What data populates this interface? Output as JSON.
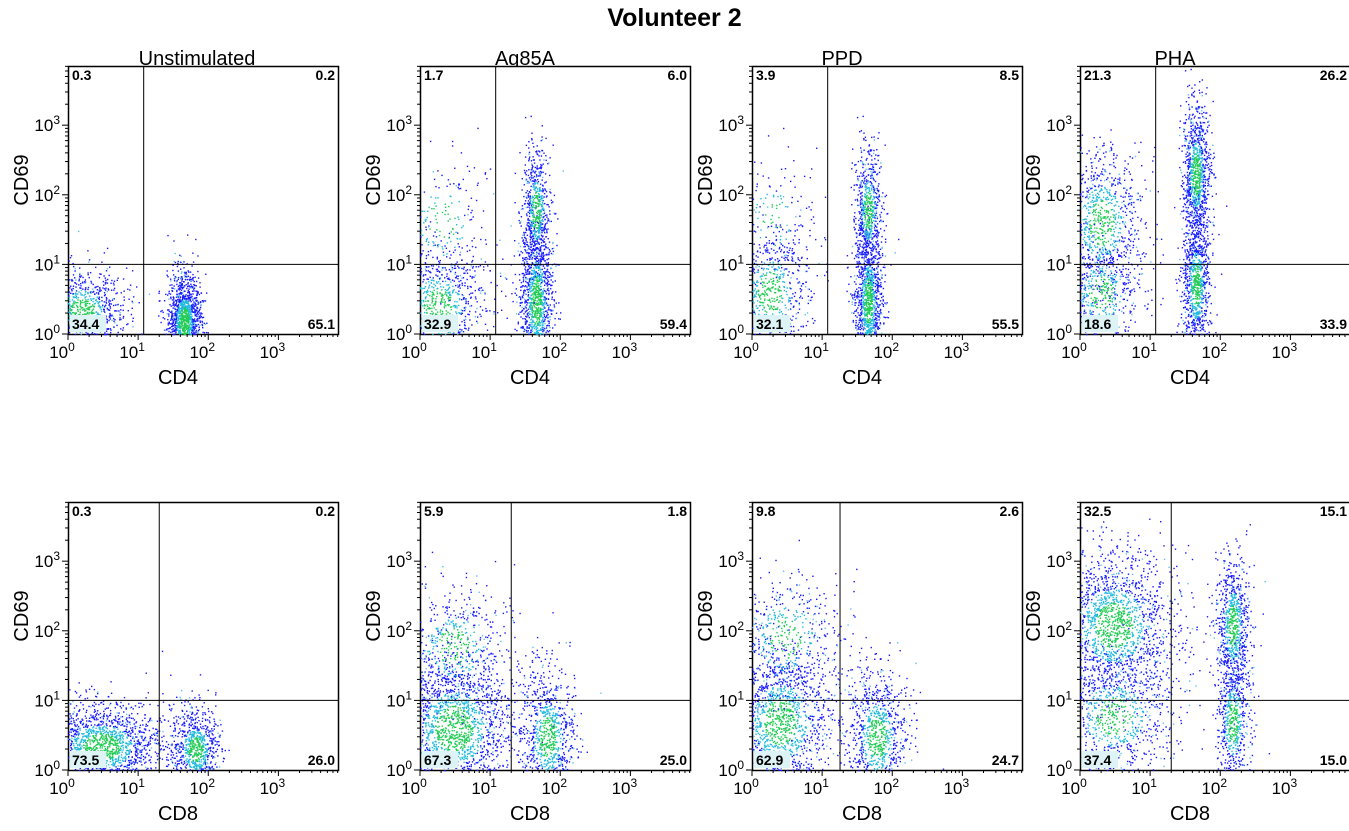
{
  "title": "Volunteer 2",
  "columns": [
    "Unstimulated",
    "Ag85A",
    "PPD",
    "PHA"
  ],
  "axis_tick_labels": {
    "base": "10",
    "exponents": [
      "0",
      "1",
      "2",
      "3"
    ]
  },
  "chart_data": [
    {
      "type": "scatter",
      "row": 1,
      "column": "Unstimulated",
      "xlabel": "CD4",
      "ylabel": "CD69",
      "xscale": "log",
      "yscale": "log",
      "xlim": [
        1,
        10000
      ],
      "ylim": [
        1,
        10000
      ],
      "quadrant_gate": {
        "x": 12,
        "y": 10
      },
      "quadrants": {
        "upper_left": "0.3",
        "upper_right": "0.2",
        "lower_left": "34.4",
        "lower_right": "65.1"
      },
      "clusters": [
        {
          "x": 1.6,
          "y": 2.2,
          "n": 900,
          "sx": 0.3,
          "sy": 0.3
        },
        {
          "x": 45,
          "y": 1.5,
          "n": 1500,
          "sx": 0.12,
          "sy": 0.35
        }
      ]
    },
    {
      "type": "scatter",
      "row": 1,
      "column": "Ag85A",
      "xlabel": "CD4",
      "ylabel": "CD69",
      "xscale": "log",
      "yscale": "log",
      "xlim": [
        1,
        10000
      ],
      "ylim": [
        1,
        10000
      ],
      "quadrant_gate": {
        "x": 12,
        "y": 10
      },
      "quadrants": {
        "upper_left": "1.7",
        "upper_right": "6.0",
        "lower_left": "32.9",
        "lower_right": "59.4"
      },
      "clusters": [
        {
          "x": 1.8,
          "y": 2.5,
          "n": 900,
          "sx": 0.35,
          "sy": 0.45
        },
        {
          "x": 45,
          "y": 3.0,
          "n": 1300,
          "sx": 0.12,
          "sy": 0.6
        },
        {
          "x": 45,
          "y": 60,
          "n": 600,
          "sx": 0.1,
          "sy": 0.45
        },
        {
          "x": 2,
          "y": 40,
          "n": 200,
          "sx": 0.35,
          "sy": 0.5
        }
      ]
    },
    {
      "type": "scatter",
      "row": 1,
      "column": "PPD",
      "xlabel": "CD4",
      "ylabel": "CD69",
      "xscale": "log",
      "yscale": "log",
      "xlim": [
        1,
        10000
      ],
      "ylim": [
        1,
        10000
      ],
      "quadrant_gate": {
        "x": 12,
        "y": 10
      },
      "quadrants": {
        "upper_left": "3.9",
        "upper_right": "8.5",
        "lower_left": "32.1",
        "lower_right": "55.5"
      },
      "clusters": [
        {
          "x": 1.8,
          "y": 4,
          "n": 700,
          "sx": 0.3,
          "sy": 0.5
        },
        {
          "x": 45,
          "y": 3,
          "n": 1200,
          "sx": 0.1,
          "sy": 0.55
        },
        {
          "x": 45,
          "y": 60,
          "n": 600,
          "sx": 0.1,
          "sy": 0.45
        },
        {
          "x": 2,
          "y": 50,
          "n": 150,
          "sx": 0.3,
          "sy": 0.45
        }
      ]
    },
    {
      "type": "scatter",
      "row": 1,
      "column": "PHA",
      "xlabel": "CD4",
      "ylabel": "CD69",
      "xscale": "log",
      "yscale": "log",
      "xlim": [
        1,
        10000
      ],
      "ylim": [
        1,
        10000
      ],
      "quadrant_gate": {
        "x": 12,
        "y": 10
      },
      "quadrants": {
        "upper_left": "21.3",
        "upper_right": "26.2",
        "lower_left": "18.6",
        "lower_right": "33.9"
      },
      "clusters": [
        {
          "x": 2,
          "y": 40,
          "n": 900,
          "sx": 0.3,
          "sy": 0.55
        },
        {
          "x": 2,
          "y": 4,
          "n": 500,
          "sx": 0.3,
          "sy": 0.4
        },
        {
          "x": 45,
          "y": 200,
          "n": 1000,
          "sx": 0.1,
          "sy": 0.5
        },
        {
          "x": 45,
          "y": 5,
          "n": 900,
          "sx": 0.1,
          "sy": 0.5
        }
      ]
    },
    {
      "type": "scatter",
      "row": 2,
      "column": "Unstimulated",
      "xlabel": "CD8",
      "ylabel": "CD69",
      "xscale": "log",
      "yscale": "log",
      "xlim": [
        1,
        10000
      ],
      "ylim": [
        1,
        10000
      ],
      "quadrant_gate": {
        "x": 20,
        "y": 10
      },
      "quadrants": {
        "upper_left": "0.3",
        "upper_right": "0.2",
        "lower_left": "73.5",
        "lower_right": "26.0"
      },
      "clusters": [
        {
          "x": 3,
          "y": 2.2,
          "n": 1800,
          "sx": 0.45,
          "sy": 0.32
        },
        {
          "x": 65,
          "y": 2,
          "n": 800,
          "sx": 0.18,
          "sy": 0.3
        }
      ]
    },
    {
      "type": "scatter",
      "row": 2,
      "column": "Ag85A",
      "xlabel": "CD8",
      "ylabel": "CD69",
      "xscale": "log",
      "yscale": "log",
      "xlim": [
        1,
        10000
      ],
      "ylim": [
        1,
        10000
      ],
      "quadrant_gate": {
        "x": 20,
        "y": 10
      },
      "quadrants": {
        "upper_left": "5.9",
        "upper_right": "1.8",
        "lower_left": "67.3",
        "lower_right": "25.0"
      },
      "clusters": [
        {
          "x": 3,
          "y": 4,
          "n": 2000,
          "sx": 0.45,
          "sy": 0.55
        },
        {
          "x": 65,
          "y": 3,
          "n": 900,
          "sx": 0.2,
          "sy": 0.5
        },
        {
          "x": 3,
          "y": 60,
          "n": 500,
          "sx": 0.4,
          "sy": 0.45
        }
      ]
    },
    {
      "type": "scatter",
      "row": 2,
      "column": "PPD",
      "xlabel": "CD8",
      "ylabel": "CD69",
      "xscale": "log",
      "yscale": "log",
      "xlim": [
        1,
        10000
      ],
      "ylim": [
        1,
        10000
      ],
      "quadrant_gate": {
        "x": 18,
        "y": 10
      },
      "quadrants": {
        "upper_left": "9.8",
        "upper_right": "2.6",
        "lower_left": "62.9",
        "lower_right": "24.7"
      },
      "clusters": [
        {
          "x": 2.5,
          "y": 5,
          "n": 1500,
          "sx": 0.4,
          "sy": 0.55
        },
        {
          "x": 60,
          "y": 3,
          "n": 900,
          "sx": 0.22,
          "sy": 0.5
        },
        {
          "x": 3,
          "y": 80,
          "n": 500,
          "sx": 0.4,
          "sy": 0.5
        }
      ]
    },
    {
      "type": "scatter",
      "row": 2,
      "column": "PHA",
      "xlabel": "CD8",
      "ylabel": "CD69",
      "xscale": "log",
      "yscale": "log",
      "xlim": [
        1,
        10000
      ],
      "ylim": [
        1,
        10000
      ],
      "quadrant_gate": {
        "x": 20,
        "y": 10
      },
      "quadrants": {
        "upper_left": "32.5",
        "upper_right": "15.1",
        "lower_left": "37.4",
        "lower_right": "15.0"
      },
      "clusters": [
        {
          "x": 3,
          "y": 120,
          "n": 1800,
          "sx": 0.45,
          "sy": 0.55
        },
        {
          "x": 3,
          "y": 6,
          "n": 800,
          "sx": 0.45,
          "sy": 0.45
        },
        {
          "x": 150,
          "y": 120,
          "n": 800,
          "sx": 0.12,
          "sy": 0.5
        },
        {
          "x": 150,
          "y": 5,
          "n": 600,
          "sx": 0.12,
          "sy": 0.5
        }
      ]
    }
  ]
}
